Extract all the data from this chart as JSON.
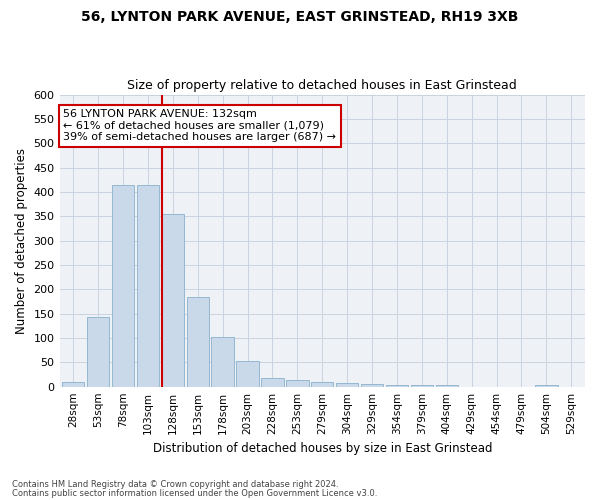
{
  "title1": "56, LYNTON PARK AVENUE, EAST GRINSTEAD, RH19 3XB",
  "title2": "Size of property relative to detached houses in East Grinstead",
  "xlabel": "Distribution of detached houses by size in East Grinstead",
  "ylabel": "Number of detached properties",
  "footnote1": "Contains HM Land Registry data © Crown copyright and database right 2024.",
  "footnote2": "Contains public sector information licensed under the Open Government Licence v3.0.",
  "property_label": "56 LYNTON PARK AVENUE: 132sqm",
  "annotation_line1": "← 61% of detached houses are smaller (1,079)",
  "annotation_line2": "39% of semi-detached houses are larger (687) →",
  "bar_color": "#c9d9ea",
  "bar_edge_color": "#8ab0cc",
  "highlight_color": "#cc0000",
  "categories": [
    "28sqm",
    "53sqm",
    "78sqm",
    "103sqm",
    "128sqm",
    "153sqm",
    "178sqm",
    "203sqm",
    "228sqm",
    "253sqm",
    "279sqm",
    "304sqm",
    "329sqm",
    "354sqm",
    "379sqm",
    "404sqm",
    "429sqm",
    "454sqm",
    "479sqm",
    "504sqm",
    "529sqm"
  ],
  "values": [
    10,
    144,
    415,
    415,
    355,
    185,
    102,
    53,
    18,
    14,
    10,
    8,
    5,
    4,
    4,
    3,
    0,
    0,
    0,
    4,
    0
  ],
  "highlight_bin_index": 4,
  "ylim": [
    0,
    600
  ],
  "yticks": [
    0,
    50,
    100,
    150,
    200,
    250,
    300,
    350,
    400,
    450,
    500,
    550,
    600
  ],
  "grid_color": "#c8d4e0",
  "bg_color": "#eef2f7"
}
